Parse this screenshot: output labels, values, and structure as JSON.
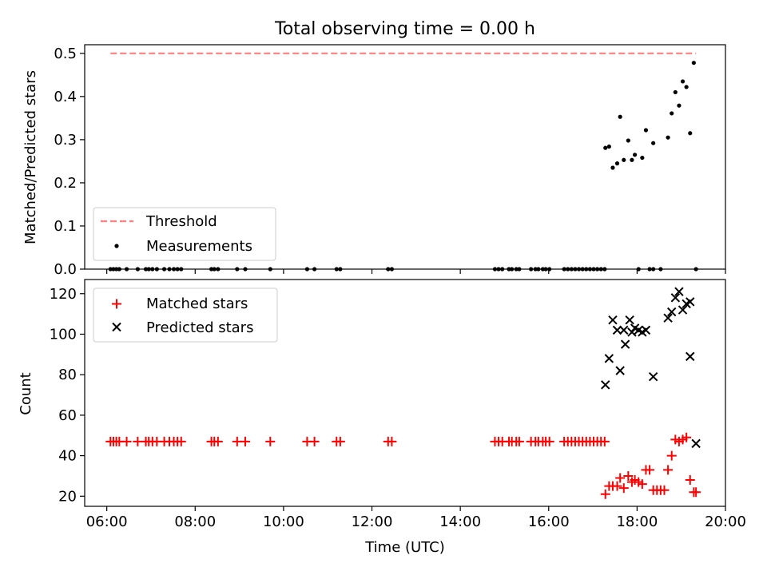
{
  "figure": {
    "title": "Total observing time = 0.00 h"
  },
  "chart_data": [
    {
      "type": "scatter",
      "ylabel": "Matched/Predicted stars",
      "xlabel": "",
      "xlim": [
        "05:30",
        "20:00"
      ],
      "ylim": [
        0,
        0.52
      ],
      "yticks": [
        0.0,
        0.1,
        0.2,
        0.3,
        0.4,
        0.5
      ],
      "ytick_labels": [
        "0.0",
        "0.1",
        "0.2",
        "0.3",
        "0.4",
        "0.5"
      ],
      "grid": false,
      "legend_position": "lower-left",
      "colors": {
        "threshold": "#ff7f7f",
        "measurements": "#000000"
      },
      "threshold": {
        "name": "Threshold",
        "y": 0.5,
        "x_start": "06:05",
        "x_end": "19:20"
      },
      "measurements": {
        "name": "Measurements",
        "zero_times": [
          "06:05",
          "06:09",
          "06:13",
          "06:17",
          "06:27",
          "06:42",
          "06:53",
          "06:57",
          "07:02",
          "07:08",
          "07:18",
          "07:25",
          "07:31",
          "07:36",
          "07:41",
          "08:22",
          "08:26",
          "08:31",
          "08:57",
          "09:08",
          "09:42",
          "10:32",
          "10:42",
          "11:12",
          "11:17",
          "12:22",
          "12:27",
          "14:47",
          "14:52",
          "14:57",
          "15:06",
          "15:10",
          "15:16",
          "15:20",
          "15:36",
          "15:42",
          "15:46",
          "15:52",
          "15:56",
          "16:01",
          "16:21",
          "16:26",
          "16:31",
          "16:36",
          "16:41",
          "16:46",
          "16:51",
          "16:56",
          "17:01",
          "17:06",
          "17:11",
          "17:16",
          "18:02",
          "18:17",
          "18:22",
          "18:32",
          "19:20"
        ],
        "points": [
          {
            "x": "17:17",
            "y": 0.281
          },
          {
            "x": "17:22",
            "y": 0.284
          },
          {
            "x": "17:27",
            "y": 0.235
          },
          {
            "x": "17:33",
            "y": 0.245
          },
          {
            "x": "17:37",
            "y": 0.353
          },
          {
            "x": "17:42",
            "y": 0.253
          },
          {
            "x": "17:48",
            "y": 0.298
          },
          {
            "x": "17:53",
            "y": 0.253
          },
          {
            "x": "17:57",
            "y": 0.265
          },
          {
            "x": "18:07",
            "y": 0.258
          },
          {
            "x": "18:12",
            "y": 0.322
          },
          {
            "x": "18:22",
            "y": 0.292
          },
          {
            "x": "18:42",
            "y": 0.305
          },
          {
            "x": "18:47",
            "y": 0.361
          },
          {
            "x": "18:52",
            "y": 0.41
          },
          {
            "x": "18:57",
            "y": 0.379
          },
          {
            "x": "19:02",
            "y": 0.435
          },
          {
            "x": "19:07",
            "y": 0.422
          },
          {
            "x": "19:12",
            "y": 0.315
          },
          {
            "x": "19:17",
            "y": 0.478
          }
        ]
      }
    },
    {
      "type": "scatter",
      "xlabel": "Time (UTC)",
      "ylabel": "Count",
      "xlim": [
        "05:30",
        "20:00"
      ],
      "xticks": [
        "06:00",
        "08:00",
        "10:00",
        "12:00",
        "14:00",
        "16:00",
        "18:00",
        "20:00"
      ],
      "ylim": [
        15,
        127
      ],
      "yticks": [
        20,
        40,
        60,
        80,
        100,
        120
      ],
      "grid": false,
      "legend_position": "top-left",
      "colors": {
        "matched": "#ff0000",
        "predicted": "#000000"
      },
      "series": [
        {
          "name": "Matched stars",
          "marker": "plus",
          "points": [
            {
              "x": "06:05",
              "y": 47
            },
            {
              "x": "06:09",
              "y": 47
            },
            {
              "x": "06:13",
              "y": 47
            },
            {
              "x": "06:17",
              "y": 47
            },
            {
              "x": "06:27",
              "y": 47
            },
            {
              "x": "06:42",
              "y": 47
            },
            {
              "x": "06:53",
              "y": 47
            },
            {
              "x": "06:57",
              "y": 47
            },
            {
              "x": "07:02",
              "y": 47
            },
            {
              "x": "07:08",
              "y": 47
            },
            {
              "x": "07:18",
              "y": 47
            },
            {
              "x": "07:25",
              "y": 47
            },
            {
              "x": "07:31",
              "y": 47
            },
            {
              "x": "07:36",
              "y": 47
            },
            {
              "x": "07:41",
              "y": 47
            },
            {
              "x": "08:22",
              "y": 47
            },
            {
              "x": "08:26",
              "y": 47
            },
            {
              "x": "08:31",
              "y": 47
            },
            {
              "x": "08:57",
              "y": 47
            },
            {
              "x": "09:08",
              "y": 47
            },
            {
              "x": "09:42",
              "y": 47
            },
            {
              "x": "10:32",
              "y": 47
            },
            {
              "x": "10:42",
              "y": 47
            },
            {
              "x": "11:12",
              "y": 47
            },
            {
              "x": "11:17",
              "y": 47
            },
            {
              "x": "12:22",
              "y": 47
            },
            {
              "x": "12:27",
              "y": 47
            },
            {
              "x": "14:47",
              "y": 47
            },
            {
              "x": "14:52",
              "y": 47
            },
            {
              "x": "14:57",
              "y": 47
            },
            {
              "x": "15:06",
              "y": 47
            },
            {
              "x": "15:10",
              "y": 47
            },
            {
              "x": "15:16",
              "y": 47
            },
            {
              "x": "15:20",
              "y": 47
            },
            {
              "x": "15:36",
              "y": 47
            },
            {
              "x": "15:42",
              "y": 47
            },
            {
              "x": "15:46",
              "y": 47
            },
            {
              "x": "15:52",
              "y": 47
            },
            {
              "x": "15:56",
              "y": 47
            },
            {
              "x": "16:01",
              "y": 47
            },
            {
              "x": "16:21",
              "y": 47
            },
            {
              "x": "16:26",
              "y": 47
            },
            {
              "x": "16:31",
              "y": 47
            },
            {
              "x": "16:36",
              "y": 47
            },
            {
              "x": "16:41",
              "y": 47
            },
            {
              "x": "16:46",
              "y": 47
            },
            {
              "x": "16:51",
              "y": 47
            },
            {
              "x": "16:56",
              "y": 47
            },
            {
              "x": "17:01",
              "y": 47
            },
            {
              "x": "17:06",
              "y": 47
            },
            {
              "x": "17:11",
              "y": 47
            },
            {
              "x": "17:16",
              "y": 47
            },
            {
              "x": "17:17",
              "y": 21
            },
            {
              "x": "17:22",
              "y": 25
            },
            {
              "x": "17:27",
              "y": 25
            },
            {
              "x": "17:33",
              "y": 25
            },
            {
              "x": "17:37",
              "y": 29
            },
            {
              "x": "17:42",
              "y": 24
            },
            {
              "x": "17:48",
              "y": 30
            },
            {
              "x": "17:53",
              "y": 27
            },
            {
              "x": "17:57",
              "y": 28
            },
            {
              "x": "18:02",
              "y": 27
            },
            {
              "x": "18:07",
              "y": 26
            },
            {
              "x": "18:12",
              "y": 33
            },
            {
              "x": "18:17",
              "y": 33
            },
            {
              "x": "18:22",
              "y": 23
            },
            {
              "x": "18:27",
              "y": 23
            },
            {
              "x": "18:32",
              "y": 23
            },
            {
              "x": "18:37",
              "y": 23
            },
            {
              "x": "18:42",
              "y": 33
            },
            {
              "x": "18:47",
              "y": 40
            },
            {
              "x": "18:52",
              "y": 48
            },
            {
              "x": "18:57",
              "y": 47
            },
            {
              "x": "19:02",
              "y": 48
            },
            {
              "x": "19:07",
              "y": 49
            },
            {
              "x": "19:12",
              "y": 28
            },
            {
              "x": "19:17",
              "y": 22
            },
            {
              "x": "19:20",
              "y": 22
            }
          ]
        },
        {
          "name": "Predicted stars",
          "marker": "x",
          "points": [
            {
              "x": "17:17",
              "y": 75
            },
            {
              "x": "17:22",
              "y": 88
            },
            {
              "x": "17:27",
              "y": 107
            },
            {
              "x": "17:33",
              "y": 102
            },
            {
              "x": "17:37",
              "y": 82
            },
            {
              "x": "17:42",
              "y": 102
            },
            {
              "x": "17:44",
              "y": 95
            },
            {
              "x": "17:50",
              "y": 107
            },
            {
              "x": "17:53",
              "y": 101
            },
            {
              "x": "17:57",
              "y": 103
            },
            {
              "x": "18:02",
              "y": 102
            },
            {
              "x": "18:07",
              "y": 101
            },
            {
              "x": "18:12",
              "y": 102
            },
            {
              "x": "18:22",
              "y": 79
            },
            {
              "x": "18:42",
              "y": 108
            },
            {
              "x": "18:47",
              "y": 111
            },
            {
              "x": "18:52",
              "y": 118
            },
            {
              "x": "18:57",
              "y": 121
            },
            {
              "x": "19:02",
              "y": 112
            },
            {
              "x": "19:07",
              "y": 115
            },
            {
              "x": "19:12",
              "y": 116
            },
            {
              "x": "19:12",
              "y": 89
            },
            {
              "x": "19:20",
              "y": 46
            }
          ]
        }
      ]
    }
  ]
}
